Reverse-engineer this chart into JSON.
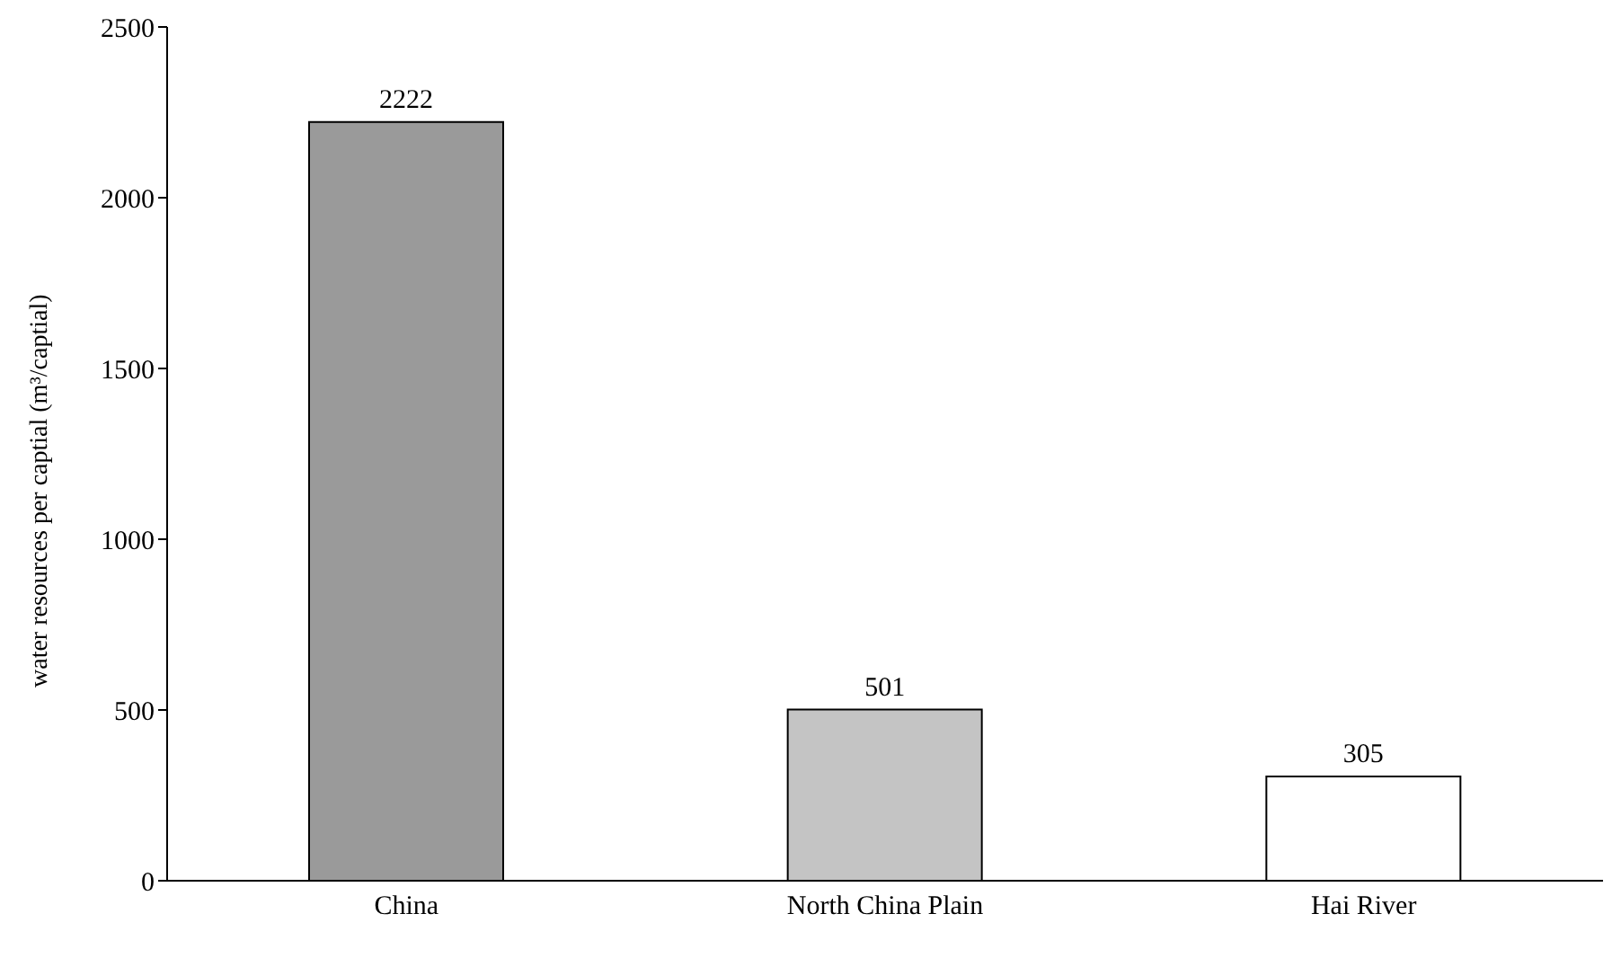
{
  "chart_data": {
    "type": "bar",
    "ylabel": "water resources per captial (m³/captial)",
    "categories": [
      "China",
      "North China Plain",
      "Hai River"
    ],
    "values": [
      2222,
      501,
      305
    ],
    "colors": [
      "#9a9a9a",
      "#c4c4c4",
      "#ffffff"
    ],
    "ylim": [
      0,
      2500
    ],
    "yticks": [
      0,
      500,
      1000,
      1500,
      2000,
      2500
    ],
    "data_labels": true,
    "grid": false,
    "legend": false
  }
}
